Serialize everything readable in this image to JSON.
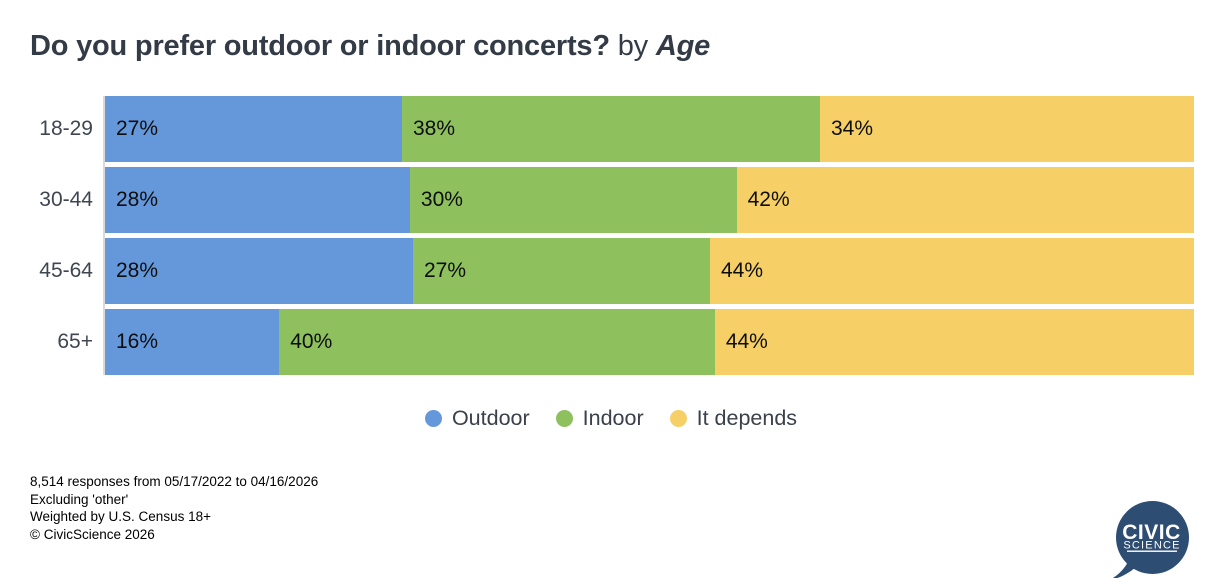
{
  "title": {
    "question": "Do you prefer outdoor or indoor concerts?",
    "by": "by",
    "breakdown": "Age"
  },
  "chart_data": {
    "type": "bar",
    "stacked": true,
    "orientation": "horizontal",
    "normalized_to_100_percent": true,
    "categories": [
      "18-29",
      "30-44",
      "45-64",
      "65+"
    ],
    "series": [
      {
        "name": "Outdoor",
        "color": "#6598db",
        "values": [
          27,
          28,
          28,
          16
        ]
      },
      {
        "name": "Indoor",
        "color": "#8ec05e",
        "values": [
          38,
          30,
          27,
          40
        ]
      },
      {
        "name": "It depends",
        "color": "#f6d066",
        "values": [
          34,
          42,
          44,
          44
        ]
      }
    ],
    "value_suffix": "%",
    "xlim": [
      0,
      100
    ],
    "grid": false,
    "legend_position": "bottom",
    "axis_line_color": "#dadada"
  },
  "footer": {
    "lines": [
      "8,514 responses from 05/17/2022 to 04/16/2026",
      "Excluding 'other'",
      "Weighted by U.S. Census 18+",
      "© CivicScience 2026"
    ]
  },
  "logo": {
    "line1": "CIVIC",
    "line2": "SCIENCE",
    "bubble_color": "#2e4d72",
    "text_color": "#ffffff"
  }
}
